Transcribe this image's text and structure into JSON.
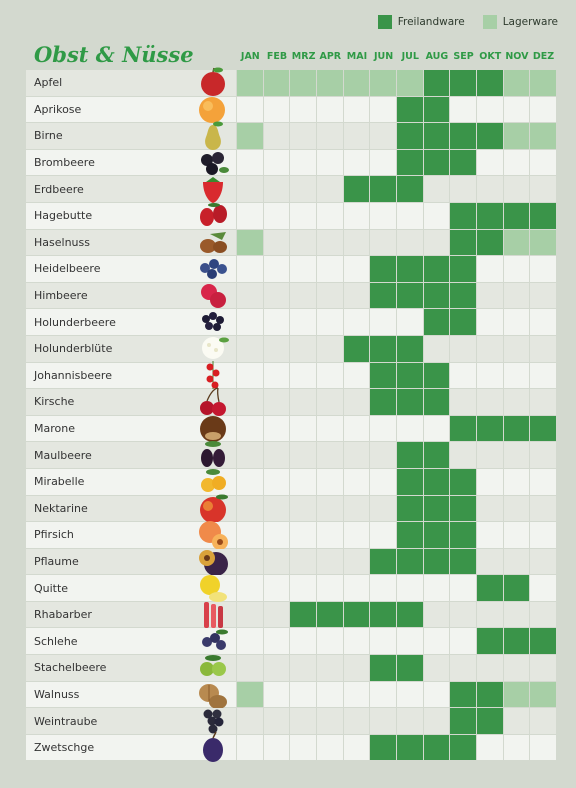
{
  "legend": {
    "freiland": "Freilandware",
    "lager": "Lagerware"
  },
  "title": "Obst & Nüsse",
  "months": [
    "JAN",
    "FEB",
    "MRZ",
    "APR",
    "MAI",
    "JUN",
    "JUL",
    "AUG",
    "SEP",
    "OKT",
    "NOV",
    "DEZ"
  ],
  "colors": {
    "freiland": "#3a9449",
    "lager": "#a7cfa6"
  },
  "fruits": [
    {
      "name": "Apfel",
      "icon": "apple-icon",
      "months": "LLLLLLLFFFLL"
    },
    {
      "name": "Aprikose",
      "icon": "apricot-icon",
      "months": "......FF...."
    },
    {
      "name": "Birne",
      "icon": "pear-icon",
      "months": "L.....FFFFLL"
    },
    {
      "name": "Brombeere",
      "icon": "blackberry-icon",
      "months": "......FFF..."
    },
    {
      "name": "Erdbeere",
      "icon": "strawberry-icon",
      "months": "....FFF....."
    },
    {
      "name": "Hagebutte",
      "icon": "rosehip-icon",
      "months": "........FFFF"
    },
    {
      "name": "Haselnuss",
      "icon": "hazelnut-icon",
      "months": "L.......FFLL"
    },
    {
      "name": "Heidelbeere",
      "icon": "blueberry-icon",
      "months": ".....FFFF..."
    },
    {
      "name": "Himbeere",
      "icon": "raspberry-icon",
      "months": ".....FFFF..."
    },
    {
      "name": "Holunderbeere",
      "icon": "elderberry-icon",
      "months": ".......FF..."
    },
    {
      "name": "Holunderblüte",
      "icon": "elderflower-icon",
      "months": "....FFF....."
    },
    {
      "name": "Johannisbeere",
      "icon": "currant-icon",
      "months": ".....FFF...."
    },
    {
      "name": "Kirsche",
      "icon": "cherry-icon",
      "months": ".....FFF...."
    },
    {
      "name": "Marone",
      "icon": "chestnut-icon",
      "months": "........FFFF"
    },
    {
      "name": "Maulbeere",
      "icon": "mulberry-icon",
      "months": "......FF...."
    },
    {
      "name": "Mirabelle",
      "icon": "mirabelle-icon",
      "months": "......FFF..."
    },
    {
      "name": "Nektarine",
      "icon": "nectarine-icon",
      "months": "......FFF..."
    },
    {
      "name": "Pfirsich",
      "icon": "peach-icon",
      "months": "......FFF..."
    },
    {
      "name": "Pflaume",
      "icon": "plum-icon",
      "months": ".....FFFF..."
    },
    {
      "name": "Quitte",
      "icon": "quince-icon",
      "months": ".........FF."
    },
    {
      "name": "Rhabarber",
      "icon": "rhubarb-icon",
      "months": "..FFFFF....."
    },
    {
      "name": "Schlehe",
      "icon": "sloe-icon",
      "months": ".........FFF"
    },
    {
      "name": "Stachelbeere",
      "icon": "gooseberry-icon",
      "months": ".....FF....."
    },
    {
      "name": "Walnuss",
      "icon": "walnut-icon",
      "months": "L.......FFLL"
    },
    {
      "name": "Weintraube",
      "icon": "grape-icon",
      "months": "........FF.."
    },
    {
      "name": "Zwetschge",
      "icon": "damson-icon",
      "months": ".....FFFF..."
    }
  ]
}
